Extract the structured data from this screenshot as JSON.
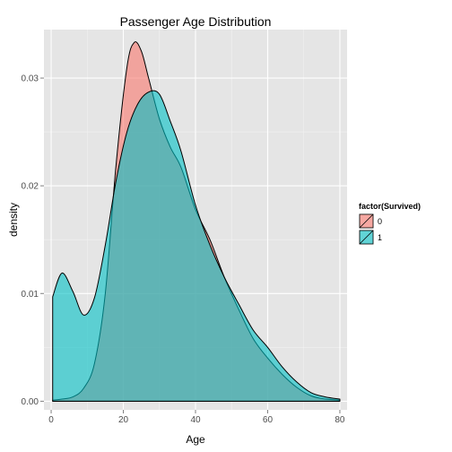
{
  "chart_data": {
    "type": "area",
    "title": "Passenger Age Distribution",
    "xlabel": "Age",
    "ylabel": "density",
    "xlim": [
      -2,
      82
    ],
    "ylim": [
      -0.0008,
      0.0345
    ],
    "x_ticks": [
      0,
      20,
      40,
      60,
      80
    ],
    "x_tick_labels": [
      "0",
      "20",
      "40",
      "60",
      "80"
    ],
    "y_ticks": [
      0.0,
      0.01,
      0.02,
      0.03
    ],
    "y_tick_labels": [
      "0.00",
      "0.01",
      "0.02",
      "0.03"
    ],
    "grid": true,
    "legend": {
      "title": "factor(Survived)",
      "position": "right",
      "entries": [
        "0",
        "1"
      ]
    },
    "series": [
      {
        "name": "0",
        "color": "#F8766D",
        "x": [
          0.42,
          3,
          6,
          9,
          12,
          15,
          18,
          21,
          23,
          25,
          27,
          30,
          33,
          36,
          40,
          44,
          48,
          52,
          56,
          60,
          64,
          68,
          72,
          76,
          80
        ],
        "y": [
          0.0001,
          0.0002,
          0.0004,
          0.0012,
          0.0035,
          0.01,
          0.022,
          0.031,
          0.0333,
          0.0325,
          0.03,
          0.0262,
          0.0236,
          0.0217,
          0.0178,
          0.015,
          0.0115,
          0.0085,
          0.0058,
          0.004,
          0.0025,
          0.0013,
          0.0005,
          0.0002,
          0.0001
        ]
      },
      {
        "name": "1",
        "color": "#00BFC4",
        "x": [
          0.42,
          3,
          6,
          9,
          12,
          15,
          18,
          21,
          24,
          27,
          30,
          33,
          36,
          40,
          44,
          48,
          52,
          56,
          60,
          64,
          68,
          72,
          76,
          80
        ],
        "y": [
          0.0097,
          0.0119,
          0.0102,
          0.008,
          0.0096,
          0.0145,
          0.0205,
          0.025,
          0.0276,
          0.0287,
          0.0285,
          0.026,
          0.0232,
          0.0182,
          0.0145,
          0.0115,
          0.009,
          0.0066,
          0.005,
          0.0032,
          0.0018,
          0.0008,
          0.0004,
          0.0002
        ]
      }
    ]
  }
}
